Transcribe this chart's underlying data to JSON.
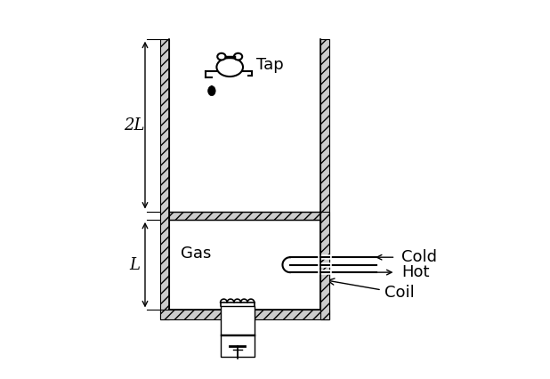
{
  "bg_color": "#ffffff",
  "labels": {
    "tap": "Tap",
    "gas": "Gas",
    "cold": "Cold",
    "hot": "Hot",
    "coil": "Coil",
    "two_L": "2L",
    "L": "L"
  },
  "font_size": 13,
  "CL": 0.22,
  "CR": 0.62,
  "CB": 0.18,
  "CT": 0.9,
  "WT": 0.025
}
